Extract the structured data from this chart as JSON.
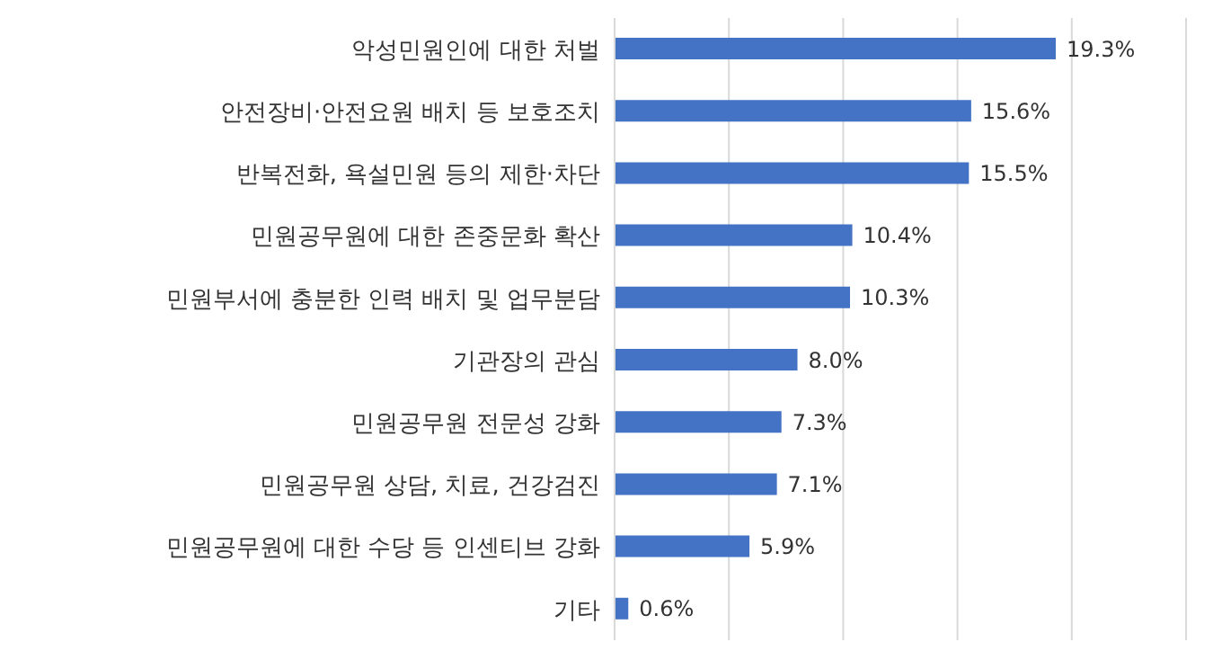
{
  "chart_data": {
    "type": "bar",
    "orientation": "horizontal",
    "categories": [
      "악성민원인에 대한 처벌",
      "안전장비·안전요원 배치 등 보호조치",
      "반복전화, 욕설민원 등의 제한·차단",
      "민원공무원에 대한 존중문화 확산",
      "민원부서에 충분한 인력 배치 및 업무분담",
      "기관장의 관심",
      "민원공무원 전문성 강화",
      "민원공무원 상담, 치료, 건강검진",
      "민원공무원에 대한 수당 등 인센티브 강화",
      "기타"
    ],
    "values": [
      19.3,
      15.6,
      15.5,
      10.4,
      10.3,
      8.0,
      7.3,
      7.1,
      5.9,
      0.6
    ],
    "value_labels": [
      "19.3%",
      "15.6%",
      "15.5%",
      "10.4%",
      "10.3%",
      "8.0%",
      "7.3%",
      "7.1%",
      "5.9%",
      "0.6%"
    ],
    "color": "#4472c4",
    "xlim": [
      0,
      25
    ],
    "grid": "x",
    "tick_labels": "y"
  }
}
